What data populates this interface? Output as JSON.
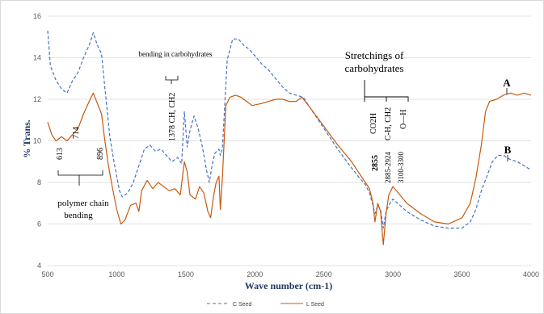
{
  "chart_data": {
    "type": "line",
    "xlabel": "Wave number (cm-1)",
    "ylabel": "% Trans.",
    "xlim": [
      500,
      4000
    ],
    "ylim": [
      4,
      16
    ],
    "x_ticks": [
      "500",
      "1000",
      "1500",
      "2000",
      "2500",
      "3000",
      "3500",
      "4000"
    ],
    "y_ticks": [
      "4",
      "6",
      "8",
      "10",
      "12",
      "14",
      "16"
    ],
    "grid": "horizontal",
    "legend": "bottom",
    "series": [
      {
        "name": "C Seed",
        "color": "#4472c4",
        "dash": true,
        "points": [
          [
            500,
            15.3
          ],
          [
            520,
            13.6
          ],
          [
            560,
            12.9
          ],
          [
            600,
            12.5
          ],
          [
            640,
            12.3
          ],
          [
            680,
            12.9
          ],
          [
            720,
            13.3
          ],
          [
            760,
            14.0
          ],
          [
            800,
            14.6
          ],
          [
            830,
            15.2
          ],
          [
            860,
            14.6
          ],
          [
            890,
            14.2
          ],
          [
            910,
            12.8
          ],
          [
            930,
            11.5
          ],
          [
            950,
            10.2
          ],
          [
            980,
            9.0
          ],
          [
            1020,
            7.6
          ],
          [
            1040,
            7.3
          ],
          [
            1080,
            7.5
          ],
          [
            1120,
            8.0
          ],
          [
            1160,
            8.8
          ],
          [
            1200,
            9.6
          ],
          [
            1240,
            9.8
          ],
          [
            1280,
            9.5
          ],
          [
            1320,
            9.6
          ],
          [
            1360,
            9.3
          ],
          [
            1400,
            9.0
          ],
          [
            1440,
            9.2
          ],
          [
            1470,
            8.9
          ],
          [
            1490,
            11.4
          ],
          [
            1510,
            9.7
          ],
          [
            1530,
            10.5
          ],
          [
            1560,
            11.2
          ],
          [
            1590,
            10.6
          ],
          [
            1620,
            9.7
          ],
          [
            1650,
            8.6
          ],
          [
            1670,
            8.0
          ],
          [
            1690,
            8.8
          ],
          [
            1710,
            9.4
          ],
          [
            1740,
            9.6
          ],
          [
            1750,
            9.3
          ],
          [
            1765,
            9.6
          ],
          [
            1800,
            13.9
          ],
          [
            1840,
            14.9
          ],
          [
            1880,
            14.9
          ],
          [
            1920,
            14.6
          ],
          [
            1960,
            14.4
          ],
          [
            2000,
            14.1
          ],
          [
            2050,
            13.7
          ],
          [
            2100,
            13.4
          ],
          [
            2150,
            13.0
          ],
          [
            2200,
            12.6
          ],
          [
            2250,
            12.3
          ],
          [
            2300,
            12.2
          ],
          [
            2350,
            12.1
          ],
          [
            2400,
            11.6
          ],
          [
            2500,
            10.6
          ],
          [
            2600,
            9.6
          ],
          [
            2700,
            8.7
          ],
          [
            2760,
            8.2
          ],
          [
            2800,
            7.9
          ],
          [
            2830,
            7.5
          ],
          [
            2855,
            6.9
          ],
          [
            2870,
            6.5
          ],
          [
            2890,
            6.9
          ],
          [
            2910,
            6.7
          ],
          [
            2930,
            5.8
          ],
          [
            2950,
            6.6
          ],
          [
            2970,
            6.9
          ],
          [
            3000,
            7.2
          ],
          [
            3050,
            6.9
          ],
          [
            3100,
            6.6
          ],
          [
            3200,
            6.2
          ],
          [
            3300,
            5.9
          ],
          [
            3400,
            5.8
          ],
          [
            3500,
            5.8
          ],
          [
            3560,
            6.1
          ],
          [
            3600,
            6.7
          ],
          [
            3640,
            7.6
          ],
          [
            3680,
            8.3
          ],
          [
            3720,
            9.0
          ],
          [
            3760,
            9.3
          ],
          [
            3800,
            9.3
          ],
          [
            3850,
            9.1
          ],
          [
            3900,
            9.0
          ],
          [
            3950,
            8.8
          ],
          [
            4000,
            8.6
          ]
        ]
      },
      {
        "name": "L Seed",
        "color": "#c55a11",
        "dash": false,
        "points": [
          [
            500,
            10.9
          ],
          [
            530,
            10.3
          ],
          [
            560,
            10.0
          ],
          [
            600,
            10.2
          ],
          [
            640,
            10.0
          ],
          [
            680,
            10.3
          ],
          [
            720,
            10.6
          ],
          [
            760,
            11.3
          ],
          [
            800,
            11.9
          ],
          [
            830,
            12.3
          ],
          [
            860,
            11.8
          ],
          [
            890,
            11.3
          ],
          [
            910,
            10.2
          ],
          [
            940,
            8.8
          ],
          [
            970,
            7.7
          ],
          [
            1000,
            6.7
          ],
          [
            1030,
            6.0
          ],
          [
            1060,
            6.2
          ],
          [
            1100,
            6.9
          ],
          [
            1140,
            7.0
          ],
          [
            1160,
            6.6
          ],
          [
            1180,
            7.6
          ],
          [
            1220,
            8.1
          ],
          [
            1260,
            7.7
          ],
          [
            1300,
            8.0
          ],
          [
            1340,
            7.8
          ],
          [
            1380,
            7.6
          ],
          [
            1420,
            7.7
          ],
          [
            1460,
            7.4
          ],
          [
            1490,
            9.0
          ],
          [
            1510,
            8.5
          ],
          [
            1530,
            7.4
          ],
          [
            1570,
            7.2
          ],
          [
            1600,
            7.8
          ],
          [
            1630,
            7.5
          ],
          [
            1660,
            6.6
          ],
          [
            1680,
            6.3
          ],
          [
            1700,
            7.3
          ],
          [
            1720,
            8.0
          ],
          [
            1740,
            8.3
          ],
          [
            1750,
            6.7
          ],
          [
            1765,
            8.2
          ],
          [
            1790,
            11.7
          ],
          [
            1820,
            12.1
          ],
          [
            1860,
            12.2
          ],
          [
            1900,
            12.1
          ],
          [
            1940,
            11.9
          ],
          [
            1980,
            11.7
          ],
          [
            2050,
            11.8
          ],
          [
            2100,
            11.9
          ],
          [
            2150,
            12.0
          ],
          [
            2200,
            12.0
          ],
          [
            2250,
            11.9
          ],
          [
            2300,
            11.9
          ],
          [
            2340,
            12.1
          ],
          [
            2400,
            11.6
          ],
          [
            2500,
            10.7
          ],
          [
            2600,
            9.8
          ],
          [
            2700,
            9.0
          ],
          [
            2760,
            8.4
          ],
          [
            2800,
            8.0
          ],
          [
            2830,
            7.7
          ],
          [
            2855,
            7.0
          ],
          [
            2870,
            6.1
          ],
          [
            2890,
            7.0
          ],
          [
            2910,
            6.6
          ],
          [
            2930,
            5.0
          ],
          [
            2950,
            6.5
          ],
          [
            2970,
            7.4
          ],
          [
            3000,
            7.8
          ],
          [
            3050,
            7.4
          ],
          [
            3100,
            7.0
          ],
          [
            3200,
            6.5
          ],
          [
            3300,
            6.1
          ],
          [
            3400,
            6.0
          ],
          [
            3500,
            6.3
          ],
          [
            3560,
            7.0
          ],
          [
            3600,
            8.2
          ],
          [
            3640,
            9.8
          ],
          [
            3670,
            11.4
          ],
          [
            3700,
            11.9
          ],
          [
            3750,
            12.0
          ],
          [
            3800,
            12.2
          ],
          [
            3850,
            12.3
          ],
          [
            3900,
            12.2
          ],
          [
            3950,
            12.3
          ],
          [
            4000,
            12.2
          ]
        ]
      }
    ],
    "annotations": {
      "bending_carbohydrates": "bending in carbohydrates",
      "ch_label": "1378 CH, CH2",
      "stretchings": [
        "Stretchings of",
        "carbohydrates"
      ],
      "co2h": "CO2H",
      "c_h": "C-H, CH2",
      "o_h": "O—H",
      "wn_2855": "2855",
      "wn_2885": "2885-2924",
      "wn_3100": "3100-3300",
      "wn_613": "613",
      "wn_714": "714",
      "wn_896": "896",
      "polymer": [
        "polymer chain",
        "bending"
      ],
      "label_a": "A",
      "label_b": "B"
    }
  }
}
